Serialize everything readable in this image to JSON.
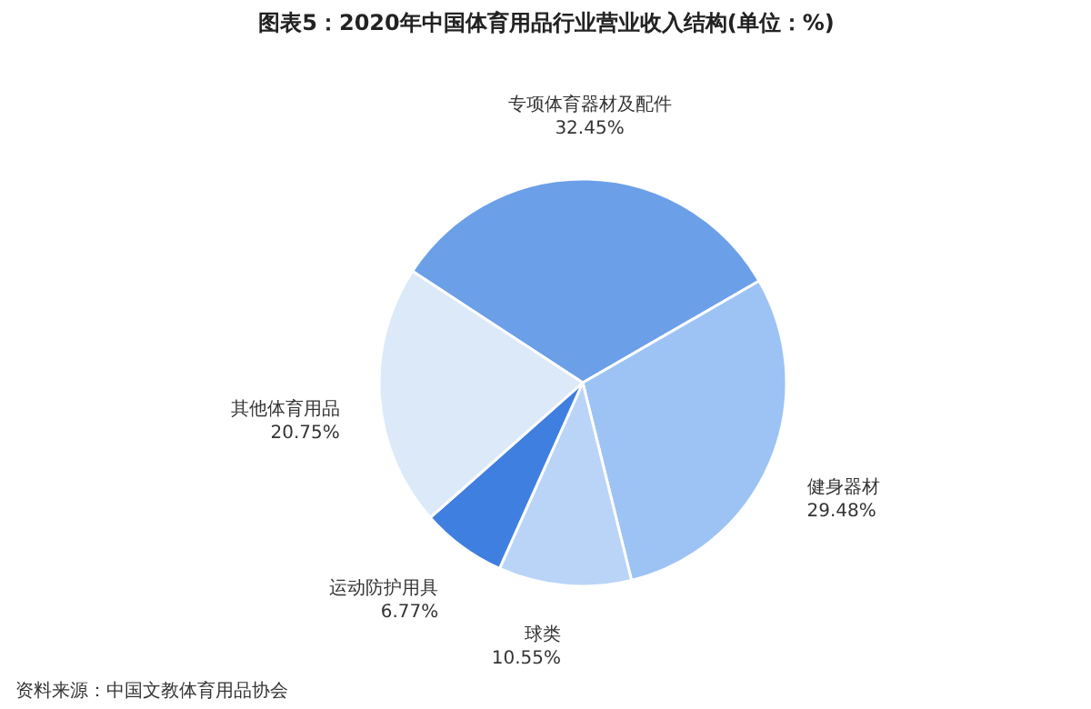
{
  "chart_data": {
    "type": "pie",
    "title": "图表5：2020年中国体育用品行业营业收入结构(单位：%)",
    "categories": [
      "专项体育器材及配件",
      "健身器材",
      "球类",
      "运动防护用具",
      "其他体育用品"
    ],
    "values": [
      32.45,
      29.48,
      10.55,
      6.77,
      20.75
    ],
    "value_labels": [
      "32.45%",
      "29.48%",
      "10.55%",
      "6.77%",
      "20.75%"
    ],
    "colors": [
      "#6b9fe8",
      "#9dc3f5",
      "#b9d4f7",
      "#3f7fdf",
      "#dce9f9"
    ],
    "annotations": [
      "资料来源：中国文教体育用品协会"
    ]
  }
}
